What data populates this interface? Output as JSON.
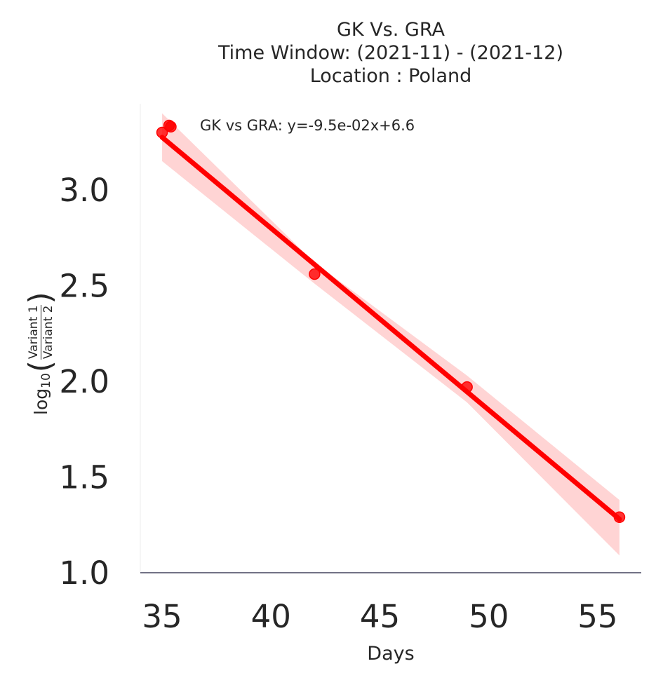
{
  "chart_data": {
    "type": "scatter",
    "title_lines": [
      "GK Vs. GRA",
      "Time Window: (2021-11) - (2021-12)",
      "Location : Poland"
    ],
    "xlabel": "Days",
    "ylabel": {
      "prefix": "log",
      "subscript": "10",
      "numerator": "Variant 1",
      "denominator": "Variant 2"
    },
    "xlim": [
      34,
      57
    ],
    "ylim": [
      1.0,
      3.45
    ],
    "xticks": [
      35,
      40,
      45,
      50,
      55
    ],
    "xtick_labels": [
      "35",
      "40",
      "45",
      "50",
      "55"
    ],
    "yticks": [
      1.0,
      1.5,
      2.0,
      2.5,
      3.0
    ],
    "ytick_labels": [
      "1.0",
      "1.5",
      "2.0",
      "2.5",
      "3.0"
    ],
    "grid": false,
    "legend_position": "top-left",
    "series": [
      {
        "name": "GK vs GRA: y=-9.5e-02x+6.6",
        "color": "#ff0000",
        "x": [
          35,
          35.4,
          42,
          49,
          56
        ],
        "y": [
          3.3,
          3.33,
          2.56,
          1.97,
          1.29
        ],
        "fit": {
          "slope": -0.095,
          "intercept": 6.6
        },
        "ci_band": {
          "x": [
            35,
            42,
            49,
            56
          ],
          "lower": [
            3.15,
            2.51,
            1.89,
            1.09
          ],
          "upper": [
            3.4,
            2.62,
            2.03,
            1.38
          ]
        }
      }
    ]
  }
}
